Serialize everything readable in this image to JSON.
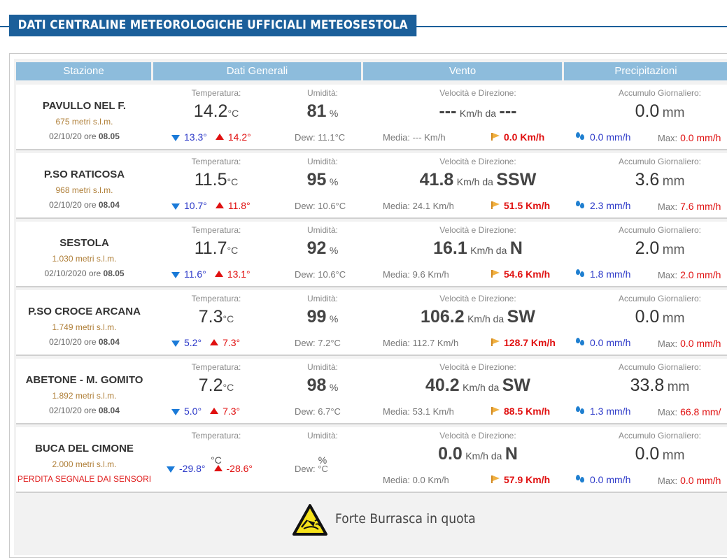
{
  "header": {
    "title": "DATI CENTRALINE METEOROLOGICHE UFFICIALI METEOSESTOLA"
  },
  "columns": [
    "Stazione",
    "Dati Generali",
    "Vento",
    "Precipitazioni"
  ],
  "labels": {
    "temp": "Temperatura:",
    "hum": "Umidità:",
    "wind": "Velocità e Direzione:",
    "rain": "Accumulo Giornaliero:",
    "temp_unit": "°C",
    "hum_unit": "%",
    "wind_unit": "Km/h da",
    "rain_unit": "mm",
    "media": "Media:",
    "max": "Max:",
    "dew": "Dew:"
  },
  "stations": [
    {
      "name": "PAVULLO NEL F.",
      "alt": "675 metri s.l.m.",
      "date": "02/10/20 ore",
      "time": "08.05",
      "temp": "14.2",
      "hum": "81",
      "tmin": "13.3°",
      "tmax": "14.2°",
      "dew": "11.1°C",
      "wind_speed": "---",
      "wind_dir": "---",
      "wind_media": "--- Km/h",
      "gust": "0.0 Km/h",
      "rain": "0.0",
      "rain_rate": "0.0 mm/h",
      "rain_max": "0.0 mm/h"
    },
    {
      "name": "P.SO RATICOSA",
      "alt": "968 metri s.l.m.",
      "date": "02/10/20 ore",
      "time": "08.04",
      "temp": "11.5",
      "hum": "95",
      "tmin": "10.7°",
      "tmax": "11.8°",
      "dew": "10.6°C",
      "wind_speed": "41.8",
      "wind_dir": "SSW",
      "wind_media": "24.1 Km/h",
      "gust": "51.5 Km/h",
      "rain": "3.6",
      "rain_rate": "2.3 mm/h",
      "rain_max": "7.6 mm/h"
    },
    {
      "name": "SESTOLA",
      "alt": "1.030 metri s.l.m.",
      "date": "02/10/2020 ore",
      "time": "08.05",
      "temp": "11.7",
      "hum": "92",
      "tmin": "11.6°",
      "tmax": "13.1°",
      "dew": "10.6°C",
      "wind_speed": "16.1",
      "wind_dir": "N",
      "wind_media": "9.6 Km/h",
      "gust": "54.6 Km/h",
      "rain": "2.0",
      "rain_rate": "1.8 mm/h",
      "rain_max": "2.0 mm/h"
    },
    {
      "name": "P.SO CROCE ARCANA",
      "alt": "1.749 metri s.l.m.",
      "date": "02/10/20 ore",
      "time": "08.04",
      "temp": "7.3",
      "hum": "99",
      "tmin": "5.2°",
      "tmax": "7.3°",
      "dew": "7.2°C",
      "wind_speed": "106.2",
      "wind_dir": "SW",
      "wind_media": "112.7 Km/h",
      "gust": "128.7 Km/h",
      "rain": "0.0",
      "rain_rate": "0.0 mm/h",
      "rain_max": "0.0 mm/h"
    },
    {
      "name": "ABETONE - M. GOMITO",
      "alt": "1.892 metri s.l.m.",
      "date": "02/10/20 ore",
      "time": "08.04",
      "temp": "7.2",
      "hum": "98",
      "tmin": "5.0°",
      "tmax": "7.3°",
      "dew": "6.7°C",
      "wind_speed": "40.2",
      "wind_dir": "SW",
      "wind_media": "53.1 Km/h",
      "gust": "88.5 Km/h",
      "rain": "33.8",
      "rain_rate": "1.3 mm/h",
      "rain_max": "66.8 mm/"
    },
    {
      "name": "BUCA DEL CIMONE",
      "alt": "2.000 metri s.l.m.",
      "warning": "PERDITA SEGNALE DAI SENSORI",
      "temp": "",
      "hum": "",
      "tmin": "-29.8°",
      "tmax": "-28.6°",
      "dew": "°C",
      "wind_speed": "0.0",
      "wind_dir": "N",
      "wind_media": "0.0 Km/h",
      "gust": "57.9 Km/h",
      "rain": "0.0",
      "rain_rate": "0.0 mm/h",
      "rain_max": "0.0 mm/h"
    }
  ],
  "footer": {
    "text": "Forte Burrasca in quota",
    "icon": "strong-wind-warning-icon"
  },
  "colors": {
    "header_bg": "#1b5f9a",
    "col_header_bg": "#8dbcdc",
    "min_temp": "#2c39c8",
    "max_temp": "#e01010",
    "altitude": "#b0803a"
  }
}
